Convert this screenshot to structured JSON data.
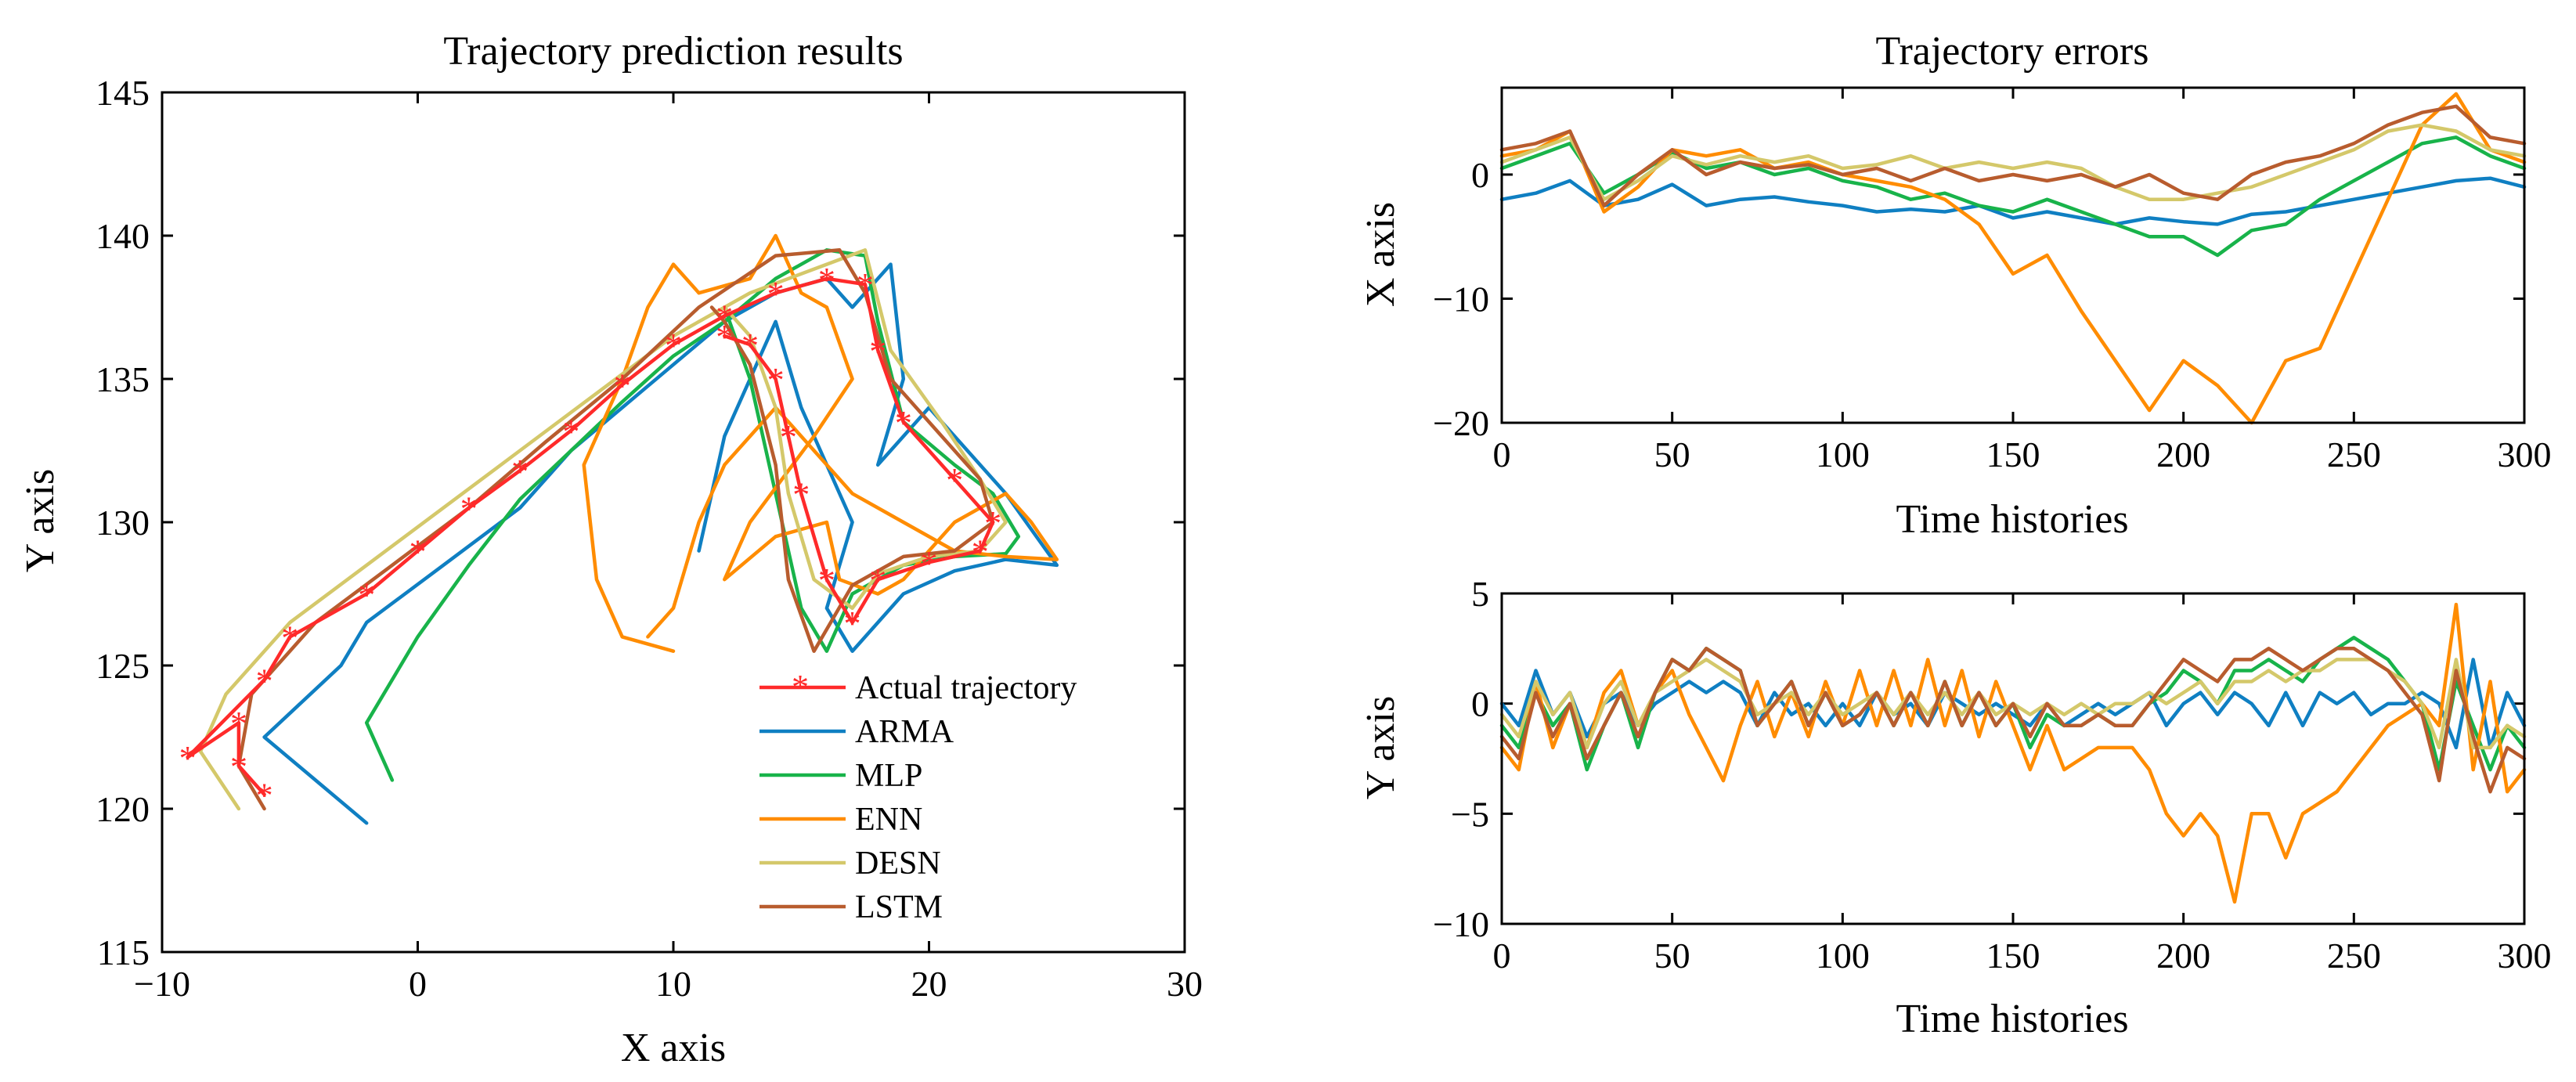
{
  "colors": {
    "Actual trajectory": "#ff2a2a",
    "ARMA": "#0f7fc2",
    "MLP": "#18b34a",
    "ENN": "#ff8c00",
    "DESN": "#d4c86a",
    "LSTM": "#b85c2e"
  },
  "chart_data": [
    {
      "id": "traj",
      "type": "line",
      "title": "Trajectory prediction results",
      "xlabel": "X axis",
      "ylabel": "Y axis",
      "xlim": [
        -10,
        30
      ],
      "ylim": [
        115,
        145
      ],
      "xticks": [
        -10,
        0,
        10,
        20,
        30
      ],
      "yticks": [
        115,
        120,
        125,
        130,
        135,
        140,
        145
      ],
      "xtick_labels": [
        "−10",
        "0",
        "10",
        "20",
        "30"
      ],
      "ytick_labels": [
        "115",
        "120",
        "125",
        "130",
        "135",
        "140",
        "145"
      ],
      "legend": [
        "Actual trajectory",
        "ARMA",
        "MLP",
        "ENN",
        "DESN",
        "LSTM"
      ],
      "legend_position": "bottom-right",
      "series": [
        {
          "name": "Actual trajectory",
          "marker": "*",
          "x": [
            -6,
            -7,
            -7,
            -9,
            -6,
            -5,
            -2,
            0,
            2,
            4,
            6,
            8,
            10,
            12,
            14,
            16,
            17.5,
            18,
            19,
            21,
            22.5,
            22,
            20,
            18,
            17,
            16,
            15,
            14.5,
            14,
            13,
            12
          ],
          "y": [
            120.5,
            121.5,
            123,
            121.8,
            124.5,
            126,
            127.5,
            129,
            130.5,
            131.8,
            133.2,
            134.8,
            136.2,
            137.2,
            138,
            138.5,
            138.3,
            136,
            133.5,
            131.5,
            130,
            129,
            128.6,
            128,
            126.5,
            128,
            131,
            133,
            135,
            136.2,
            136.5
          ]
        },
        {
          "name": "ARMA",
          "x": [
            -2,
            -4,
            -6,
            -3,
            -2,
            1,
            4,
            6,
            8,
            10,
            12,
            14,
            16,
            17,
            18.5,
            19,
            18,
            20,
            22,
            23,
            25,
            23,
            21,
            19,
            18,
            17,
            16,
            17,
            15,
            14,
            12,
            11
          ],
          "y": [
            119.5,
            121,
            122.5,
            125,
            126.5,
            128.5,
            130.5,
            132.5,
            134,
            135.5,
            137,
            138,
            138.5,
            137.5,
            139,
            135,
            132,
            134,
            132,
            131,
            128.5,
            128.7,
            128.3,
            127.5,
            126.5,
            125.5,
            127,
            130,
            134,
            137,
            133,
            129
          ]
        },
        {
          "name": "MLP",
          "x": [
            -1,
            -2,
            0,
            2,
            4,
            6,
            8,
            10,
            12,
            14,
            16,
            17.5,
            18,
            19,
            21,
            22.5,
            23.5,
            23,
            21,
            19,
            17,
            16,
            15,
            14,
            13,
            12
          ],
          "y": [
            121,
            123,
            126,
            128.5,
            130.8,
            132.5,
            134.2,
            135.8,
            137,
            138.5,
            139.5,
            139.3,
            137,
            133.5,
            132,
            131,
            129.5,
            128.9,
            128.8,
            128.5,
            127.5,
            125.5,
            127,
            131,
            135,
            137.5
          ]
        },
        {
          "name": "ENN",
          "x": [
            10,
            8,
            7,
            6.5,
            8,
            9,
            10,
            11,
            13,
            14,
            15,
            16,
            17,
            15.5,
            13,
            12,
            14,
            16,
            16.5,
            18,
            19,
            20,
            21,
            23,
            24,
            25,
            23,
            21,
            19,
            17,
            15,
            14,
            12,
            11,
            10,
            9
          ],
          "y": [
            125.5,
            126,
            128,
            132,
            135,
            137.5,
            139,
            138,
            138.5,
            140,
            138,
            137.5,
            135,
            133,
            130,
            128,
            129.5,
            130,
            128,
            127.5,
            128,
            129,
            130,
            131,
            130,
            128.7,
            128.8,
            129,
            130,
            131,
            133,
            134,
            132,
            130,
            127,
            126
          ]
        },
        {
          "name": "DESN",
          "x": [
            -7,
            -8.5,
            -7.5,
            -5,
            -2,
            1,
            4,
            7,
            10,
            13,
            16,
            17.5,
            18.5,
            20.5,
            22,
            23,
            22,
            20,
            18,
            17,
            15.5,
            14.5,
            14,
            13,
            12
          ],
          "y": [
            120,
            122,
            124,
            126.5,
            128.5,
            130.5,
            132.5,
            134.5,
            136.5,
            138,
            139,
            139.5,
            136,
            133.5,
            131.5,
            130,
            129,
            128.8,
            128.2,
            127,
            128,
            131,
            134,
            136.5,
            137.5
          ]
        },
        {
          "name": "LSTM",
          "x": [
            -6,
            -7,
            -6.5,
            -4,
            -1,
            2,
            5,
            8,
            11,
            14,
            16.5,
            17.5,
            18.5,
            20.5,
            22,
            22.5,
            21,
            19,
            17,
            15.5,
            14.5,
            14,
            13,
            12,
            11.5
          ],
          "y": [
            120,
            121.5,
            124,
            126.5,
            128.5,
            130.5,
            132.8,
            135,
            137.5,
            139.3,
            139.5,
            138,
            135,
            133,
            131.5,
            130,
            129,
            128.8,
            127.8,
            125.5,
            128,
            132,
            135.5,
            137,
            137.5
          ]
        }
      ]
    },
    {
      "id": "xerr",
      "type": "line",
      "title": "Trajectory errors",
      "xlabel": "Time histories",
      "ylabel": "X axis",
      "xlim": [
        0,
        300
      ],
      "ylim": [
        -20,
        7
      ],
      "xticks": [
        0,
        50,
        100,
        150,
        200,
        250,
        300
      ],
      "yticks": [
        -20,
        -10,
        0
      ],
      "xtick_labels": [
        "0",
        "50",
        "100",
        "150",
        "200",
        "250",
        "300"
      ],
      "ytick_labels": [
        "−20",
        "−10",
        "0"
      ],
      "x": [
        0,
        10,
        20,
        30,
        40,
        50,
        60,
        70,
        80,
        90,
        100,
        110,
        120,
        130,
        140,
        150,
        160,
        170,
        180,
        190,
        200,
        210,
        220,
        230,
        240,
        250,
        260,
        270,
        280,
        290,
        300
      ],
      "series": [
        {
          "name": "ARMA",
          "values": [
            -2,
            -1.5,
            -0.5,
            -2.5,
            -2,
            -0.8,
            -2.5,
            -2,
            -1.8,
            -2.2,
            -2.5,
            -3,
            -2.8,
            -3,
            -2.5,
            -3.5,
            -3,
            -3.5,
            -4,
            -3.5,
            -3.8,
            -4,
            -3.2,
            -3,
            -2.5,
            -2,
            -1.5,
            -1,
            -0.5,
            -0.3,
            -1
          ]
        },
        {
          "name": "MLP",
          "values": [
            0.5,
            1.5,
            2.5,
            -1.5,
            0,
            1.8,
            0.5,
            1,
            0,
            0.5,
            -0.5,
            -1,
            -2,
            -1.5,
            -2.5,
            -3,
            -2,
            -3,
            -4,
            -5,
            -5,
            -6.5,
            -4.5,
            -4,
            -2,
            -0.5,
            1,
            2.5,
            3,
            1.5,
            0.5
          ]
        },
        {
          "name": "ENN",
          "values": [
            1.5,
            2,
            3.5,
            -3,
            -1,
            2,
            1.5,
            2,
            0.5,
            1,
            0,
            -0.5,
            -1,
            -2,
            -4,
            -8,
            -6.5,
            -11,
            -15,
            -19,
            -15,
            -17,
            -20,
            -15,
            -14,
            -8,
            -2,
            4,
            6.5,
            2,
            1
          ]
        },
        {
          "name": "DESN",
          "values": [
            1,
            2,
            3,
            -2,
            -0.5,
            1.5,
            0.8,
            1.5,
            1,
            1.5,
            0.5,
            0.8,
            1.5,
            0.5,
            1,
            0.5,
            1,
            0.5,
            -1,
            -2,
            -2,
            -1.5,
            -1,
            0,
            1,
            2,
            3.5,
            4,
            3.5,
            2,
            1.5
          ]
        },
        {
          "name": "LSTM",
          "values": [
            2,
            2.5,
            3.5,
            -2.5,
            0,
            2,
            0,
            1,
            0.5,
            0.8,
            0,
            0.5,
            -0.5,
            0.5,
            -0.5,
            0,
            -0.5,
            0,
            -1,
            0,
            -1.5,
            -2,
            0,
            1,
            1.5,
            2.5,
            4,
            5,
            5.5,
            3,
            2.5
          ]
        }
      ]
    },
    {
      "id": "yerr",
      "type": "line",
      "title": "",
      "xlabel": "Time histories",
      "ylabel": "Y axis",
      "xlim": [
        0,
        300
      ],
      "ylim": [
        -10,
        5
      ],
      "xticks": [
        0,
        50,
        100,
        150,
        200,
        250,
        300
      ],
      "yticks": [
        -10,
        -5,
        0,
        5
      ],
      "xtick_labels": [
        "0",
        "50",
        "100",
        "150",
        "200",
        "250",
        "300"
      ],
      "ytick_labels": [
        "−10",
        "−5",
        "0",
        "5"
      ],
      "x": [
        0,
        5,
        10,
        15,
        20,
        25,
        30,
        35,
        40,
        45,
        50,
        55,
        60,
        65,
        70,
        75,
        80,
        85,
        90,
        95,
        100,
        105,
        110,
        115,
        120,
        125,
        130,
        135,
        140,
        145,
        150,
        155,
        160,
        165,
        170,
        175,
        180,
        185,
        190,
        195,
        200,
        205,
        210,
        215,
        220,
        225,
        230,
        235,
        240,
        245,
        250,
        255,
        260,
        265,
        270,
        275,
        280,
        285,
        290,
        295,
        300
      ],
      "series": [
        {
          "name": "ARMA",
          "values": [
            0,
            -1,
            1.5,
            -0.5,
            0.5,
            -1.5,
            0,
            0.5,
            -1,
            0,
            0.5,
            1,
            0.5,
            1,
            0.5,
            -1,
            0.5,
            -0.5,
            0,
            -1,
            0,
            -1,
            0.5,
            -0.5,
            0,
            -1,
            0.5,
            0,
            -0.5,
            0,
            -0.5,
            -1,
            0,
            -1,
            -0.5,
            0,
            -0.5,
            0,
            0.5,
            -1,
            0,
            0.5,
            -0.5,
            0.5,
            0,
            -1,
            0.5,
            -1,
            0.5,
            0,
            0.5,
            -0.5,
            0,
            0,
            0.5,
            0,
            -2,
            2,
            -2,
            0.5,
            -1
          ]
        },
        {
          "name": "MLP",
          "values": [
            -1,
            -2,
            0.5,
            -1,
            0,
            -3,
            -1,
            0.5,
            -2,
            0.5,
            2,
            1.5,
            2.5,
            2,
            1.5,
            -1,
            0,
            1,
            -1,
            0.5,
            -1,
            -0.5,
            0.5,
            -1,
            0.5,
            -1,
            1,
            -1,
            0.5,
            -1,
            0,
            -2,
            -0.5,
            -1,
            -1,
            -0.5,
            -1,
            -1,
            0,
            0.5,
            1.5,
            1,
            0,
            1.5,
            1.5,
            2,
            1.5,
            1,
            2,
            2.5,
            3,
            2.5,
            2,
            1,
            0,
            -3,
            1,
            -1,
            -3,
            -1,
            -2
          ]
        },
        {
          "name": "ENN",
          "values": [
            -2,
            -3,
            1,
            -2,
            0,
            -2,
            0.5,
            1.5,
            -1,
            0.5,
            1.5,
            -0.5,
            -2,
            -3.5,
            -1,
            1,
            -1.5,
            0.5,
            -1.5,
            1,
            -1,
            1.5,
            -1,
            1.5,
            -1,
            2,
            -1,
            1.5,
            -1.5,
            1,
            -1,
            -3,
            -1,
            -3,
            -2.5,
            -2,
            -2,
            -2,
            -3,
            -5,
            -6,
            -5,
            -6,
            -9,
            -5,
            -5,
            -7,
            -5,
            -4.5,
            -4,
            -3,
            -2,
            -1,
            -0.5,
            0,
            -1,
            4.5,
            -3,
            1,
            -4,
            -3
          ]
        },
        {
          "name": "DESN",
          "values": [
            -0.5,
            -1.5,
            1,
            -0.5,
            0.5,
            -2,
            0,
            1,
            -1,
            0.5,
            1,
            1.5,
            2,
            1.5,
            1,
            -0.5,
            0,
            0.5,
            -0.5,
            0.5,
            -0.5,
            0,
            0.5,
            -0.5,
            0.5,
            -0.5,
            0.5,
            -0.5,
            0.5,
            -0.5,
            0,
            -0.5,
            0,
            -0.5,
            0,
            -0.5,
            0,
            0,
            0.5,
            0,
            0.5,
            1,
            0,
            1,
            1,
            1.5,
            1,
            1.5,
            1.5,
            2,
            2,
            2,
            1.5,
            1,
            0,
            -2,
            2,
            -2,
            -2,
            -1,
            -1.5
          ]
        },
        {
          "name": "LSTM",
          "values": [
            -1.5,
            -2.5,
            0.5,
            -1.5,
            0,
            -2.5,
            -1,
            0.5,
            -1.5,
            0.5,
            2,
            1.5,
            2.5,
            2,
            1.5,
            -1,
            0,
            1,
            -1,
            0.5,
            -1,
            -0.5,
            0.5,
            -1,
            0.5,
            -1,
            1,
            -1,
            0.5,
            -1,
            0,
            -1.5,
            0,
            -1,
            -1,
            -0.5,
            -1,
            -1,
            0,
            1,
            2,
            1.5,
            1,
            2,
            2,
            2.5,
            2,
            1.5,
            2,
            2.5,
            2.5,
            2,
            1.5,
            0.5,
            -0.5,
            -3.5,
            1.5,
            -1.5,
            -4,
            -2,
            -2.5
          ]
        }
      ]
    }
  ]
}
